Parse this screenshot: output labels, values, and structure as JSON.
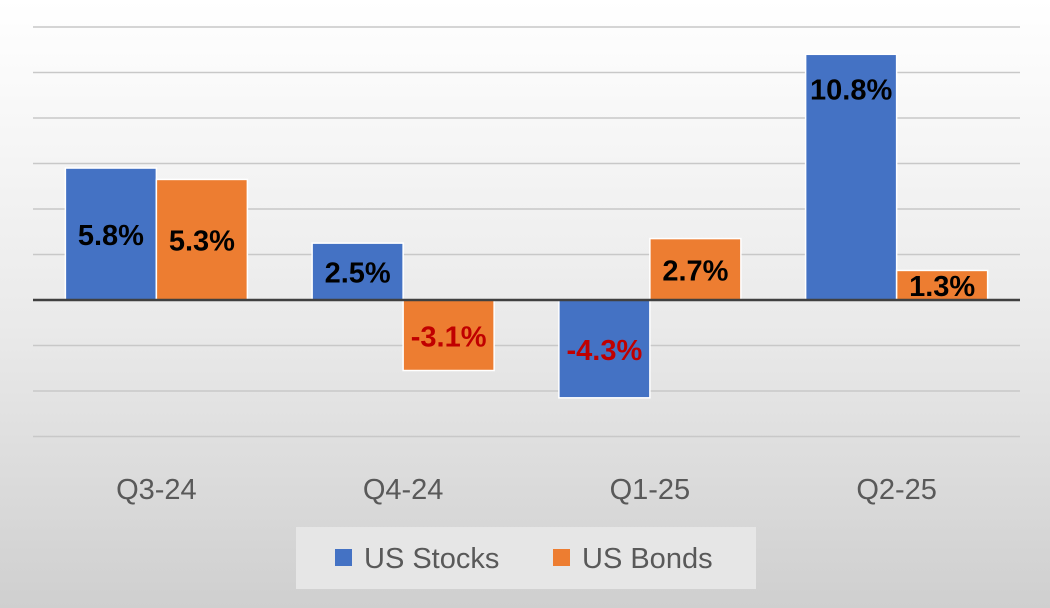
{
  "chart_data": {
    "type": "bar",
    "title": "",
    "xlabel": "",
    "ylabel": "",
    "categories": [
      "Q3-24",
      "Q4-24",
      "Q1-25",
      "Q2-25"
    ],
    "series": [
      {
        "name": "US Stocks",
        "color": "#4472C4",
        "values": [
          5.8,
          2.5,
          -4.3,
          10.8
        ],
        "labels": [
          "5.8%",
          "2.5%",
          "-4.3%",
          "10.8%"
        ]
      },
      {
        "name": "US Bonds",
        "color": "#ED7D31",
        "values": [
          5.3,
          -3.1,
          2.7,
          1.3
        ],
        "labels": [
          "5.3%",
          "-3.1%",
          "2.7%",
          "1.3%"
        ]
      }
    ],
    "ylim": [
      -6,
      12
    ],
    "grid": true,
    "legend_position": "bottom",
    "label_colors": {
      "positive": "#000000",
      "negative": "#C00000"
    }
  }
}
